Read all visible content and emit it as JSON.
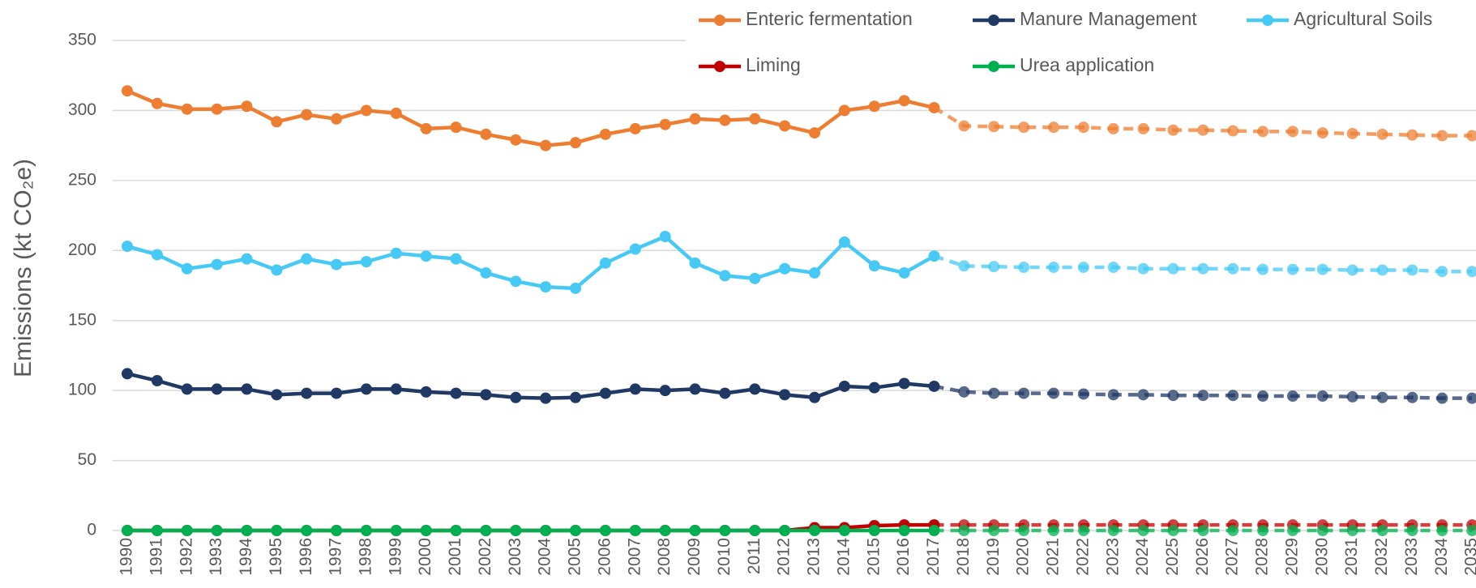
{
  "chart_data": {
    "type": "line",
    "y_label": "Emissions (kt CO₂e)",
    "categories": [
      "1990",
      "1991",
      "1992",
      "1993",
      "1994",
      "1995",
      "1996",
      "1997",
      "1998",
      "1999",
      "2000",
      "2001",
      "2002",
      "2003",
      "2004",
      "2005",
      "2006",
      "2007",
      "2008",
      "2009",
      "2010",
      "2011",
      "2012",
      "2013",
      "2014",
      "2015",
      "2016",
      "2017",
      "2018",
      "2019",
      "2020",
      "2021",
      "2022",
      "2023",
      "2024",
      "2025",
      "2026",
      "2027",
      "2028",
      "2029",
      "2030",
      "2031",
      "2032",
      "2033",
      "2034",
      "2035"
    ],
    "projection_from": "2017",
    "series": [
      {
        "name": "Enteric fermentation",
        "color": "#ED7D31",
        "values": [
          314,
          305,
          301,
          301,
          303,
          292,
          297,
          294,
          300,
          298,
          287,
          288,
          283,
          279,
          275,
          277,
          283,
          287,
          290,
          294,
          293,
          294,
          289,
          284,
          300,
          303,
          307,
          302,
          289,
          288.5,
          288,
          288,
          288,
          287,
          287,
          286,
          286,
          285.5,
          285,
          285,
          284,
          283.5,
          283,
          282.5,
          282,
          282
        ]
      },
      {
        "name": "Manure Management",
        "color": "#203864",
        "values": [
          112,
          107,
          101,
          101,
          101,
          97,
          98,
          98,
          101,
          101,
          99,
          98,
          97,
          95,
          94.5,
          95,
          98,
          101,
          100,
          101,
          98,
          101,
          97,
          95,
          103,
          102,
          105,
          103,
          99,
          98,
          98,
          98,
          97.5,
          97,
          97,
          96.5,
          96.5,
          96.5,
          96,
          96,
          96,
          95.5,
          95,
          95,
          94.5,
          94.5
        ]
      },
      {
        "name": "Agricultural Soils",
        "color": "#47C9F5",
        "values": [
          203,
          197,
          187,
          190,
          194,
          186,
          194,
          190,
          192,
          198,
          196,
          194,
          184,
          178,
          174,
          173,
          191,
          201,
          210,
          191,
          182,
          180,
          187,
          184,
          206,
          189,
          184,
          196,
          189,
          188.5,
          188,
          188,
          188,
          188,
          187,
          187,
          187,
          187,
          186.5,
          186.5,
          186.5,
          186,
          186,
          186,
          185,
          185
        ]
      },
      {
        "name": "Liming",
        "color": "#C00000",
        "values": [
          0,
          0,
          0,
          0,
          0,
          0,
          0,
          0,
          0,
          0,
          0,
          0,
          0,
          0,
          0,
          0,
          0,
          0,
          0,
          0,
          0,
          0,
          0,
          2,
          2,
          3.5,
          4,
          4,
          4,
          4,
          4,
          4,
          4,
          4,
          4,
          4,
          4,
          4,
          4,
          4,
          4,
          4,
          4,
          4,
          4,
          4
        ]
      },
      {
        "name": "Urea application",
        "color": "#00B050",
        "values": [
          0,
          0,
          0,
          0,
          0,
          0,
          0,
          0,
          0,
          0,
          0,
          0,
          0,
          0,
          0,
          0,
          0,
          0,
          0,
          0,
          0,
          0,
          0,
          0,
          0,
          0,
          0,
          0,
          0,
          0,
          0,
          0,
          0,
          0,
          0,
          0,
          0,
          0,
          0,
          0,
          0,
          0,
          0,
          0,
          0,
          0
        ]
      }
    ],
    "ylim": [
      0,
      350
    ],
    "yticks": [
      0,
      50,
      100,
      150,
      200,
      250,
      300,
      350
    ],
    "grid": true,
    "legend": "top-right"
  }
}
